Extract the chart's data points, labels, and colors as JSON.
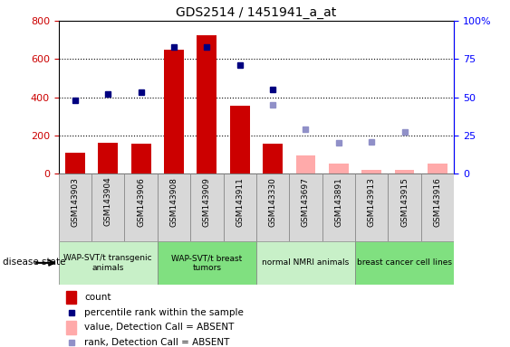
{
  "title": "GDS2514 / 1451941_a_at",
  "samples": [
    "GSM143903",
    "GSM143904",
    "GSM143906",
    "GSM143908",
    "GSM143909",
    "GSM143911",
    "GSM143330",
    "GSM143697",
    "GSM143891",
    "GSM143913",
    "GSM143915",
    "GSM143916"
  ],
  "count_values": [
    110,
    160,
    155,
    650,
    725,
    355,
    155,
    null,
    null,
    null,
    null,
    null
  ],
  "count_absent_values": [
    null,
    null,
    null,
    null,
    null,
    null,
    null,
    95,
    52,
    18,
    18,
    50
  ],
  "rank_values_pct": [
    48,
    52,
    53,
    83,
    83,
    71,
    55,
    null,
    null,
    null,
    null,
    null
  ],
  "rank_absent_values_pct": [
    null,
    null,
    null,
    null,
    null,
    null,
    45,
    29,
    20,
    21,
    27,
    null
  ],
  "groups": [
    {
      "label": "WAP-SVT/t transgenic\nanimals",
      "start": 0,
      "end": 3,
      "color": "#c8f0c8"
    },
    {
      "label": "WAP-SVT/t breast\ntumors",
      "start": 3,
      "end": 6,
      "color": "#80e080"
    },
    {
      "label": "normal NMRI animals",
      "start": 6,
      "end": 9,
      "color": "#c8f0c8"
    },
    {
      "label": "breast cancer cell lines",
      "start": 9,
      "end": 12,
      "color": "#80e080"
    }
  ],
  "ylim_left": [
    0,
    800
  ],
  "ylim_right": [
    0,
    100
  ],
  "yticks_left": [
    0,
    200,
    400,
    600,
    800
  ],
  "yticks_right": [
    0,
    25,
    50,
    75,
    100
  ],
  "ytick_labels_right": [
    "0",
    "25",
    "50",
    "75",
    "100%"
  ],
  "count_color": "#cc0000",
  "count_absent_color": "#ffaaaa",
  "rank_color": "#000080",
  "rank_absent_color": "#9090c8",
  "grid_color": "black",
  "sample_box_color": "#d8d8d8",
  "plot_bg": "white",
  "legend_items": [
    {
      "color": "#cc0000",
      "shape": "bar",
      "label": "count"
    },
    {
      "color": "#000080",
      "shape": "square",
      "label": "percentile rank within the sample"
    },
    {
      "color": "#ffaaaa",
      "shape": "bar",
      "label": "value, Detection Call = ABSENT"
    },
    {
      "color": "#9090c8",
      "shape": "square",
      "label": "rank, Detection Call = ABSENT"
    }
  ]
}
